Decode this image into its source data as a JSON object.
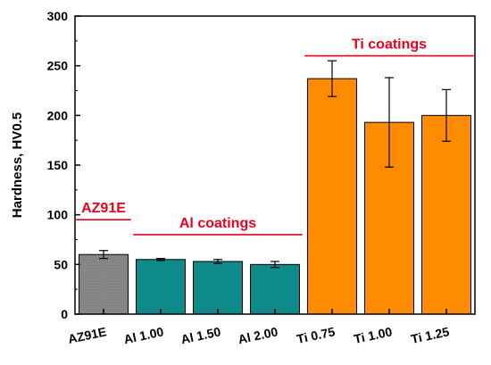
{
  "chart_data": {
    "type": "bar",
    "categories": [
      "AZ91E",
      "Al 1.00",
      "Al 1.50",
      "Al 2.00",
      "Ti 0.75",
      "Ti 1.00",
      "Ti 1.25"
    ],
    "values": [
      60,
      55,
      53,
      50,
      237,
      193,
      200
    ],
    "errors": [
      4,
      1,
      2,
      3,
      18,
      45,
      26
    ],
    "bar_colors": [
      "#8c8c8c",
      "#0f8a8a",
      "#0f8a8a",
      "#0f8a8a",
      "#ff8c00",
      "#ff8c00",
      "#ff8c00"
    ],
    "ylabel": "Hardness, HV0.5",
    "ylim": [
      0,
      300
    ],
    "yticks": [
      0,
      50,
      100,
      150,
      200,
      250,
      300
    ],
    "grid": false,
    "group_annotations": [
      {
        "label": "AZ91E",
        "from": 0,
        "to": 0,
        "y": 95,
        "color": "#e8001c"
      },
      {
        "label": "Al coatings",
        "from": 1,
        "to": 3,
        "y": 80,
        "color": "#e8001c"
      },
      {
        "label": "Ti coatings",
        "from": 4,
        "to": 6,
        "y": 260,
        "color": "#e8001c"
      }
    ]
  }
}
